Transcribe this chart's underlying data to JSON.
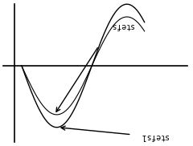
{
  "background_color": "#ffffff",
  "figsize": [
    2.4,
    1.82
  ],
  "dpi": 100,
  "label_top": "stefs",
  "label_bottom": "stefs1",
  "wave_color": "#000000",
  "axis_color": "#000000",
  "arrow_color": "#000000",
  "xlim": [
    -0.3,
    3.8
  ],
  "ylim": [
    -2.2,
    1.8
  ]
}
